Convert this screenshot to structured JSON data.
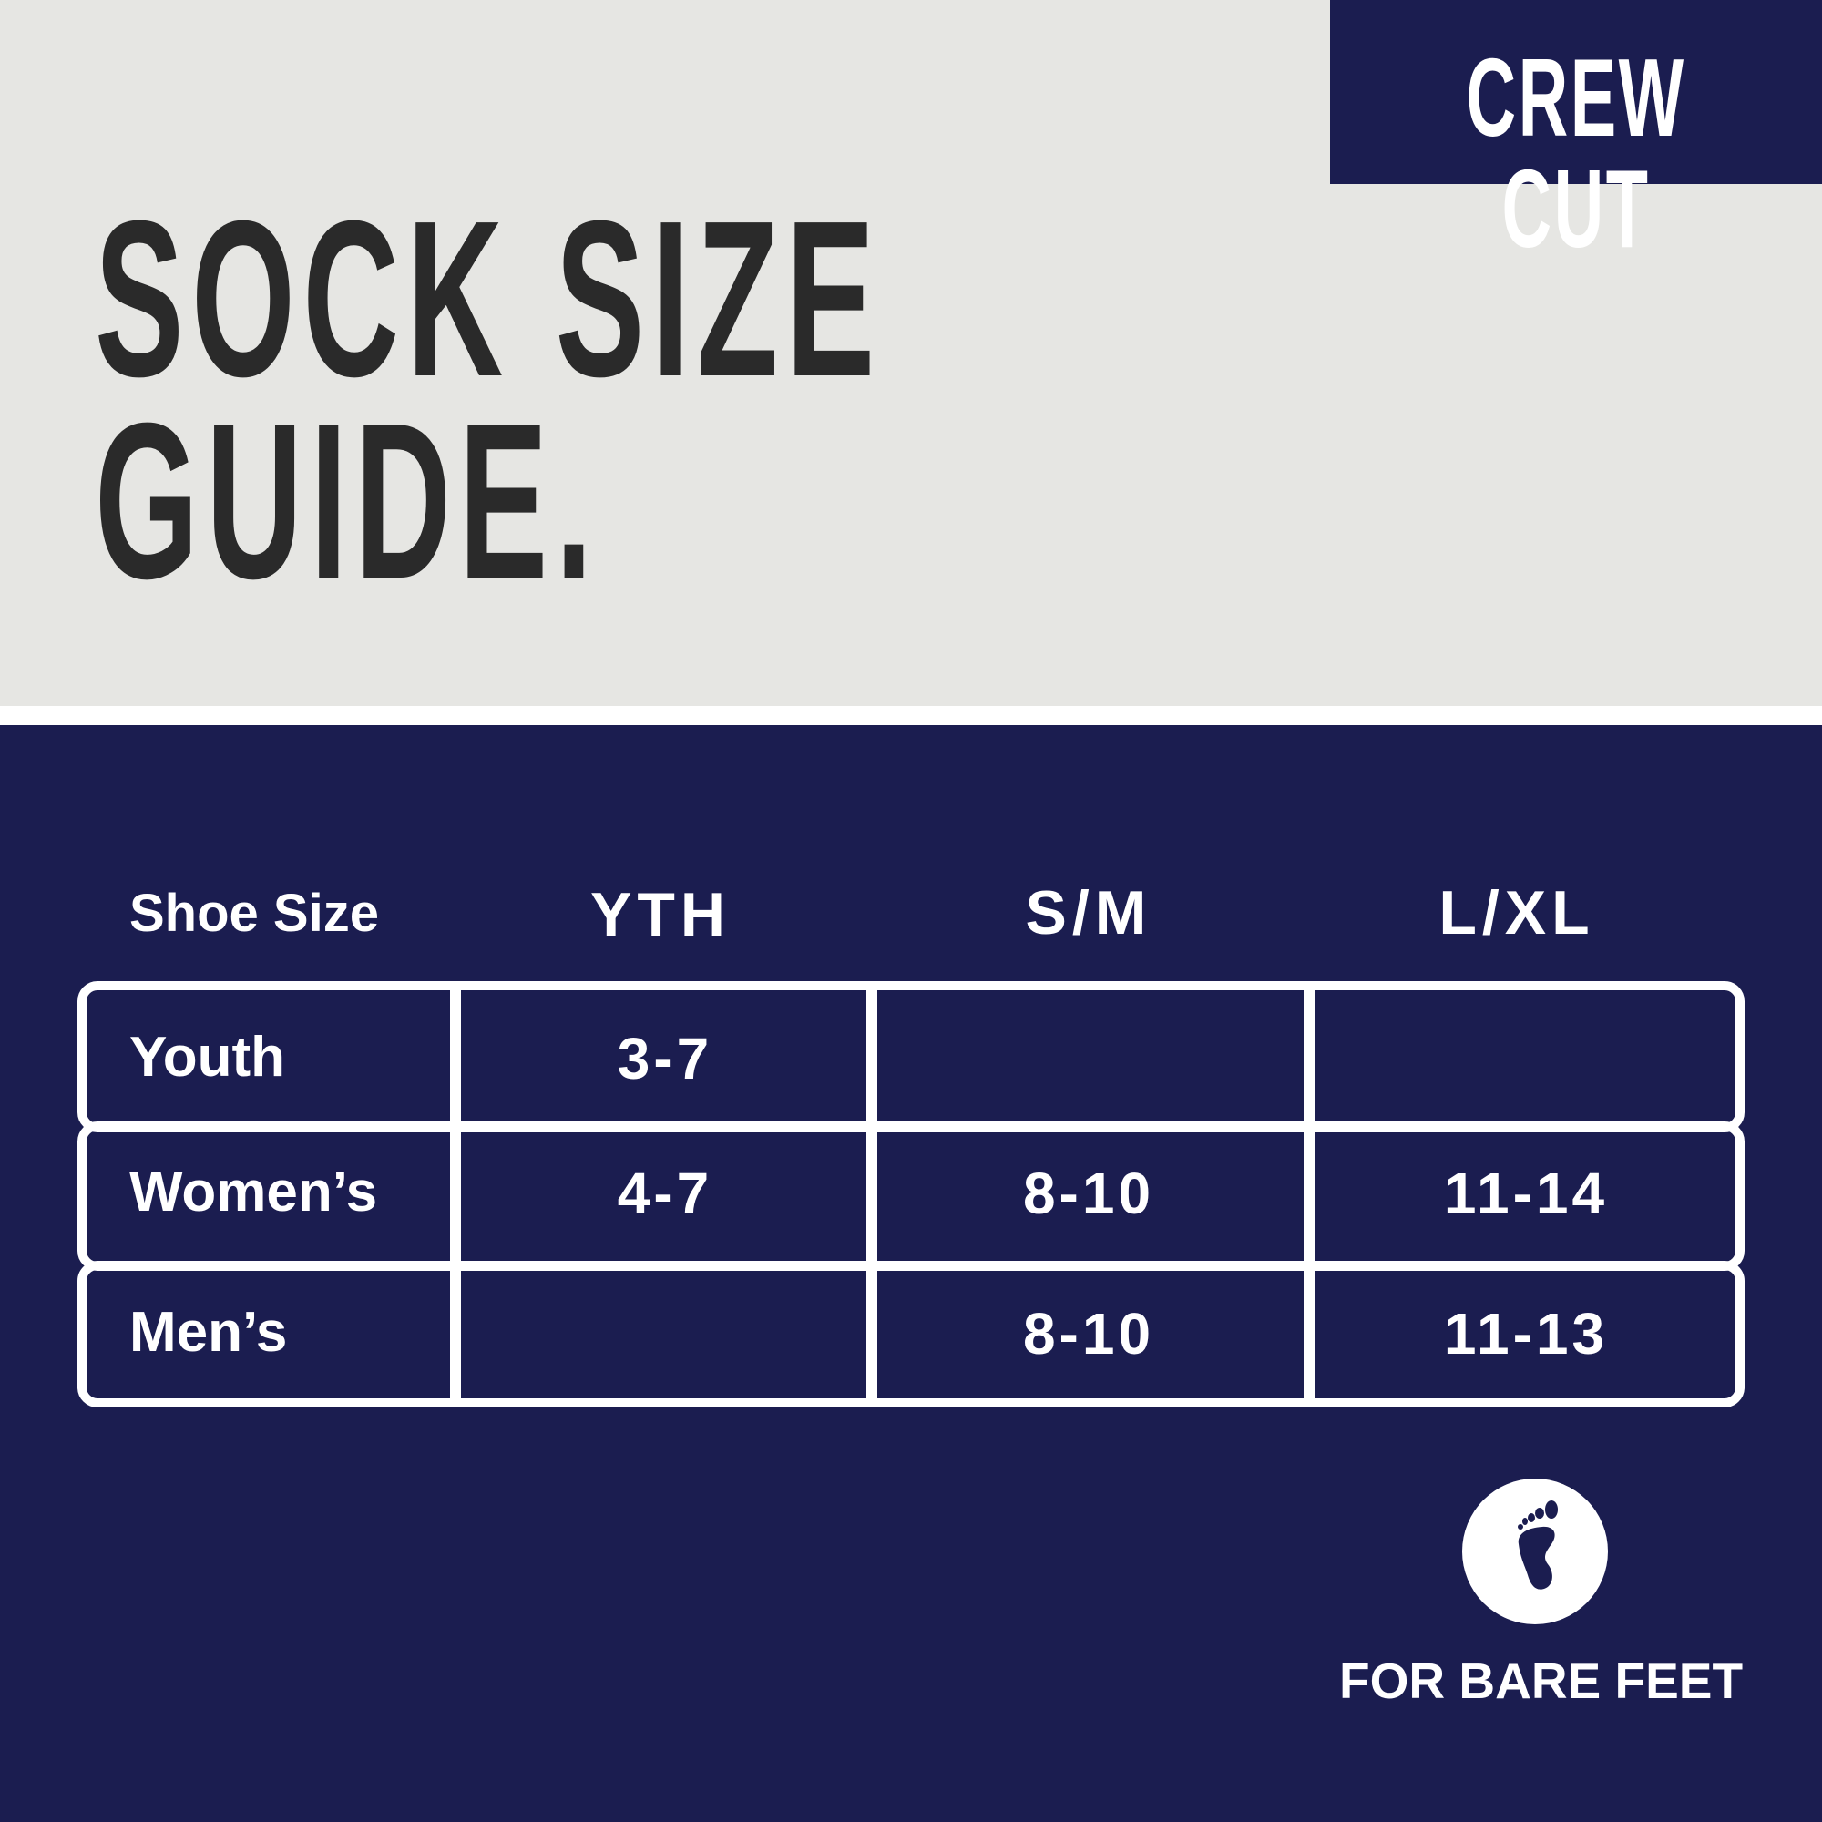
{
  "badge": {
    "label": "CREW CUT"
  },
  "title": {
    "line1": "SOCK SIZE",
    "line2": "GUIDE."
  },
  "table": {
    "corner_header": "Shoe Size",
    "columns": [
      "YTH",
      "S/M",
      "L/XL"
    ],
    "rows": [
      {
        "label": "Youth",
        "values": [
          "3-7",
          "",
          ""
        ]
      },
      {
        "label": "Women’s",
        "values": [
          "4-7",
          "8-10",
          "11-14"
        ]
      },
      {
        "label": "Men’s",
        "values": [
          "",
          "8-10",
          "11-13"
        ]
      }
    ]
  },
  "footer": {
    "icon": "bare-foot-icon",
    "label": "FOR BARE FEET"
  },
  "colors": {
    "navy": "#1b1d50",
    "light_gray": "#e6e6e3",
    "title_text": "#2a2a2a"
  }
}
